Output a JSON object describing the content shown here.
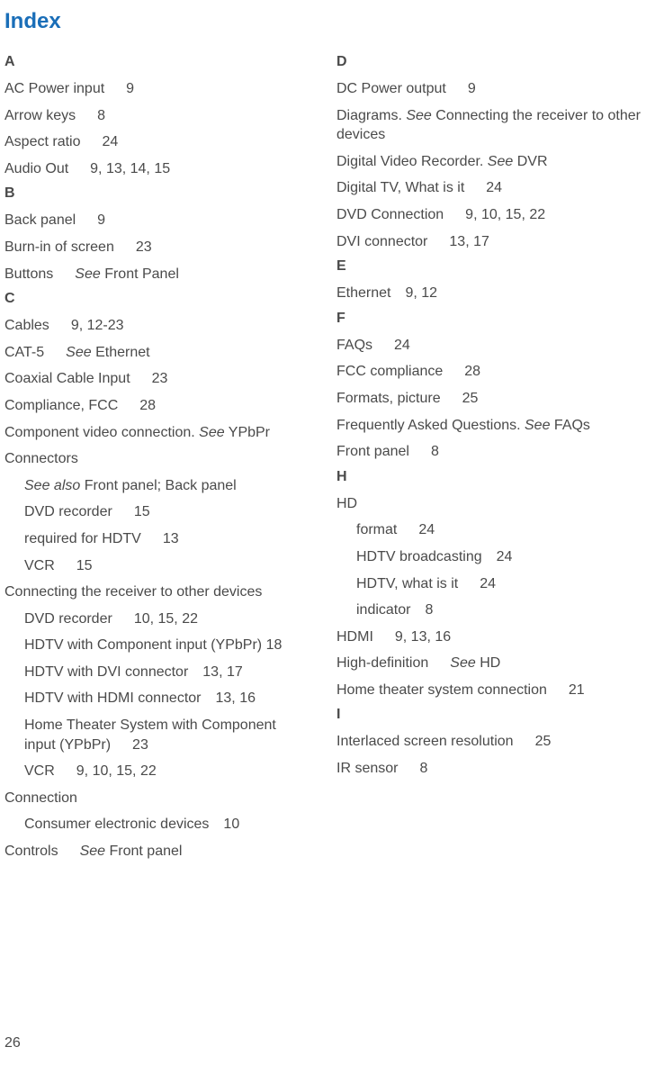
{
  "title": "Index",
  "pageNumber": "26",
  "left": {
    "A": {
      "letter": "A",
      "entries": [
        {
          "text": "AC Power input",
          "pages": "9"
        },
        {
          "text": "Arrow keys",
          "pages": "8"
        },
        {
          "text": "Aspect ratio",
          "pages": "24"
        },
        {
          "text": "Audio Out",
          "pages": "9, 13, 14, 15"
        }
      ]
    },
    "B": {
      "letter": "B",
      "entries": [
        {
          "text": "Back panel",
          "pages": "9"
        },
        {
          "text": "Burn-in of screen",
          "pages": "23"
        },
        {
          "text": "Buttons",
          "see": "See",
          "ref": "Front Panel"
        }
      ]
    },
    "C": {
      "letter": "C",
      "cables": {
        "text": "Cables",
        "pages": "9, 12-23"
      },
      "cat5": {
        "text": "CAT-5",
        "see": "See",
        "ref": "Ethernet"
      },
      "coaxial": {
        "text": "Coaxial Cable Input",
        "pages": "23"
      },
      "compliance": {
        "text": "Compliance, FCC",
        "pages": "28"
      },
      "component": {
        "text": "Component video connection. ",
        "see": "See",
        "ref": "YPbPr"
      },
      "connectors": {
        "heading": "Connectors",
        "seealso": {
          "see": "See also",
          "ref": "Front panel; Back panel"
        },
        "dvd": {
          "text": "DVD recorder",
          "pages": "15"
        },
        "required": {
          "text": "required for HDTV",
          "pages": "13"
        },
        "vcr": {
          "text": "VCR",
          "pages": "15"
        }
      },
      "connecting": {
        "heading": "Connecting the receiver to other devices",
        "dvd": {
          "text": "DVD recorder",
          "pages": "10, 15, 22"
        },
        "hdtvComp": {
          "text": "HDTV with Component input (YPbPr)",
          "pages": "18"
        },
        "hdtvDvi": {
          "text": "HDTV with DVI connector",
          "pages": "13, 17"
        },
        "hdtvHdmi": {
          "text": "HDTV with HDMI connector",
          "pages": "13, 16"
        },
        "homeTheater": {
          "text": "Home Theater System with Component input (YPbPr)",
          "pages": "23"
        },
        "vcr": {
          "text": "VCR",
          "pages": "9, 10, 15, 22"
        }
      },
      "connection": {
        "heading": "Connection",
        "consumer": {
          "text": "Consumer electronic devices",
          "pages": "10"
        }
      },
      "controls": {
        "text": "Controls",
        "see": "See",
        "ref": "Front panel"
      }
    }
  },
  "right": {
    "D": {
      "letter": "D",
      "dcpower": {
        "text": "DC Power output",
        "pages": "9"
      },
      "diagrams": {
        "text": "Diagrams. ",
        "see": "See",
        "ref": "Connecting the receiver to other devices"
      },
      "dvr": {
        "text": "Digital Video Recorder. ",
        "see": "See",
        "ref": "DVR"
      },
      "digitaltv": {
        "text": "Digital TV, What is it",
        "pages": "24"
      },
      "dvdconn": {
        "text": "DVD Connection",
        "pages": "9, 10, 15, 22"
      },
      "dviconn": {
        "text": "DVI connector",
        "pages": "13, 17"
      }
    },
    "E": {
      "letter": "E",
      "ethernet": {
        "text": "Ethernet",
        "pages": "9, 12"
      }
    },
    "F": {
      "letter": "F",
      "faqs": {
        "text": "FAQs",
        "pages": "24"
      },
      "fcc": {
        "text": "FCC compliance",
        "pages": "28"
      },
      "formats": {
        "text": "Formats, picture",
        "pages": "25"
      },
      "faq2": {
        "text": "Frequently Asked Questions. ",
        "see": "See",
        "ref": "FAQs"
      },
      "front": {
        "text": "Front panel",
        "pages": "8"
      }
    },
    "H": {
      "letter": "H",
      "hd": {
        "heading": "HD",
        "format": {
          "text": "format",
          "pages": "24"
        },
        "broadcasting": {
          "text": "HDTV broadcasting",
          "pages": "24"
        },
        "whatis": {
          "text": "HDTV, what is it",
          "pages": "24"
        },
        "indicator": {
          "text": "indicator",
          "pages": "8"
        }
      },
      "hdmi": {
        "text": "HDMI",
        "pages": "9, 13, 16"
      },
      "highdef": {
        "text": "High-definition",
        "see": "See",
        "ref": "HD"
      },
      "hometheater": {
        "text": "Home theater system connection",
        "pages": "21"
      }
    },
    "I": {
      "letter": "I",
      "interlaced": {
        "text": "Interlaced screen resolution",
        "pages": "25"
      },
      "irsensor": {
        "text": "IR sensor",
        "pages": "8"
      }
    }
  }
}
